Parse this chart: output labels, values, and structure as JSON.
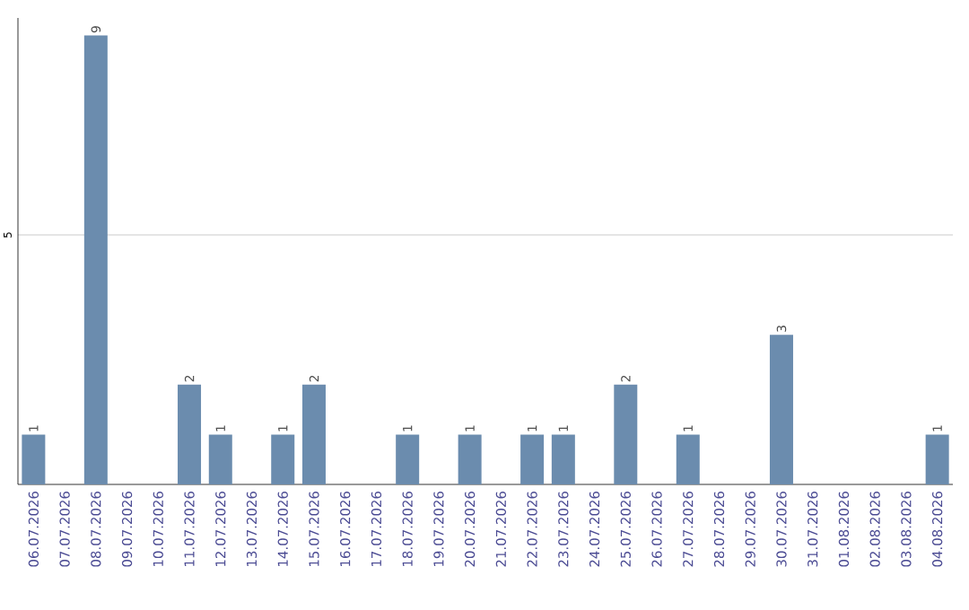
{
  "chart_data": {
    "type": "bar",
    "categories": [
      "06.07.2026",
      "07.07.2026",
      "08.07.2026",
      "09.07.2026",
      "10.07.2026",
      "11.07.2026",
      "12.07.2026",
      "13.07.2026",
      "14.07.2026",
      "15.07.2026",
      "16.07.2026",
      "17.07.2026",
      "18.07.2026",
      "19.07.2026",
      "20.07.2026",
      "21.07.2026",
      "22.07.2026",
      "23.07.2026",
      "24.07.2026",
      "25.07.2026",
      "26.07.2026",
      "27.07.2026",
      "28.07.2026",
      "29.07.2026",
      "30.07.2026",
      "31.07.2026",
      "01.08.2026",
      "02.08.2026",
      "03.08.2026",
      "04.08.2026"
    ],
    "values": [
      1,
      0,
      9,
      0,
      0,
      2,
      1,
      0,
      1,
      2,
      0,
      0,
      1,
      0,
      1,
      0,
      1,
      1,
      0,
      2,
      0,
      1,
      0,
      0,
      3,
      0,
      0,
      0,
      0,
      1
    ],
    "value_labels": [
      "1",
      null,
      "9",
      null,
      null,
      "2",
      "1",
      null,
      "1",
      "2",
      null,
      null,
      "1",
      null,
      "1",
      null,
      "1",
      "1",
      null,
      "2",
      null,
      "1",
      null,
      null,
      "3",
      null,
      null,
      null,
      null,
      "1"
    ],
    "color": "#6b8cae",
    "ylim": [
      0,
      9.35
    ],
    "yticks": [
      5
    ],
    "grid": "y"
  }
}
